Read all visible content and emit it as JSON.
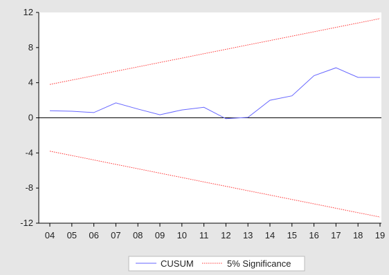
{
  "chart_data": {
    "type": "line",
    "title": "",
    "xlabel": "",
    "ylabel": "",
    "x": [
      "04",
      "05",
      "06",
      "07",
      "08",
      "09",
      "10",
      "11",
      "12",
      "13",
      "14",
      "15",
      "16",
      "17",
      "18",
      "19"
    ],
    "ylim": [
      -12,
      12
    ],
    "yticks": [
      12,
      8,
      4,
      0,
      -4,
      -8,
      -12
    ],
    "grid": false,
    "legend_position": "bottom",
    "series": [
      {
        "name": "CUSUM",
        "color": "#6666ff",
        "style": "solid",
        "values": [
          0.8,
          0.75,
          0.6,
          1.7,
          1.0,
          0.35,
          0.9,
          1.2,
          -0.1,
          0.05,
          2.0,
          2.5,
          4.8,
          5.7,
          4.6,
          4.6
        ]
      },
      {
        "name": "5% Significance",
        "color": "#ff3333",
        "style": "dotted",
        "values": [
          3.8,
          4.3,
          4.8,
          5.3,
          5.8,
          6.3,
          6.8,
          7.3,
          7.8,
          8.3,
          8.8,
          9.3,
          9.8,
          10.3,
          10.8,
          11.3
        ]
      },
      {
        "name": "",
        "color": "#ff3333",
        "style": "dotted",
        "values": [
          -3.8,
          -4.3,
          -4.8,
          -5.3,
          -5.8,
          -6.3,
          -6.8,
          -7.3,
          -7.8,
          -8.3,
          -8.8,
          -9.3,
          -9.8,
          -10.3,
          -10.8,
          -11.3
        ]
      }
    ]
  },
  "legend": {
    "cusum_label": "CUSUM",
    "significance_label": "5% Significance"
  },
  "colors": {
    "background": "#e6e6e6",
    "plot_area": "#ffffff",
    "cusum": "#6666ff",
    "significance": "#ff3333"
  }
}
